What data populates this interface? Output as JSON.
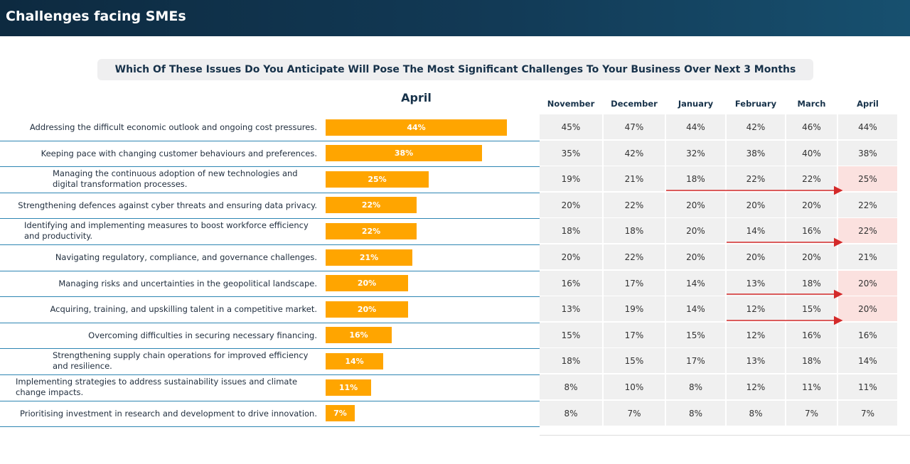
{
  "header": {
    "title": "Challenges facing SMEs"
  },
  "question": "Which Of These Issues Do You Anticipate Will Pose The Most Significant Challenges To Your Business Over Next 3 Months",
  "chart_data": [
    {
      "type": "bar",
      "orientation": "horizontal",
      "title": "April",
      "categories": [
        "Addressing the difficult economic outlook and ongoing cost pressures.",
        "Keeping pace with changing customer behaviours and preferences.",
        "Managing the continuous adoption of new technologies and digital transformation processes.",
        "Strengthening defences against cyber threats and ensuring data privacy.",
        "Identifying and implementing measures to boost workforce efficiency and productivity.",
        "Navigating regulatory, compliance, and governance challenges.",
        "Managing risks and uncertainties in the geopolitical landscape.",
        "Acquiring, training, and upskilling talent in a competitive market.",
        "Overcoming difficulties in securing necessary financing.",
        "Strengthening supply chain operations for improved efficiency and resilience.",
        "Implementing strategies to address sustainability issues and climate change impacts.",
        "Prioritising investment in research and development to drive innovation."
      ],
      "values": [
        44,
        38,
        25,
        22,
        22,
        21,
        20,
        20,
        16,
        14,
        11,
        7
      ],
      "value_labels": [
        "44%",
        "38%",
        "25%",
        "22%",
        "22%",
        "21%",
        "20%",
        "20%",
        "16%",
        "14%",
        "11%",
        "7%"
      ],
      "bar_color": "#ffa500"
    },
    {
      "type": "table",
      "columns": [
        "November",
        "December",
        "January",
        "February",
        "March",
        "April"
      ],
      "rows": [
        [
          "45%",
          "47%",
          "44%",
          "42%",
          "46%",
          "44%"
        ],
        [
          "35%",
          "42%",
          "32%",
          "38%",
          "40%",
          "38%"
        ],
        [
          "19%",
          "21%",
          "18%",
          "22%",
          "22%",
          "25%"
        ],
        [
          "20%",
          "22%",
          "20%",
          "20%",
          "20%",
          "22%"
        ],
        [
          "18%",
          "18%",
          "20%",
          "14%",
          "16%",
          "22%"
        ],
        [
          "20%",
          "22%",
          "20%",
          "20%",
          "20%",
          "21%"
        ],
        [
          "16%",
          "17%",
          "14%",
          "13%",
          "18%",
          "20%"
        ],
        [
          "13%",
          "19%",
          "14%",
          "12%",
          "15%",
          "20%"
        ],
        [
          "15%",
          "17%",
          "15%",
          "12%",
          "16%",
          "16%"
        ],
        [
          "18%",
          "15%",
          "17%",
          "13%",
          "18%",
          "14%"
        ],
        [
          "8%",
          "10%",
          "8%",
          "12%",
          "11%",
          "11%"
        ],
        [
          "8%",
          "7%",
          "8%",
          "8%",
          "7%",
          "7%"
        ]
      ],
      "highlighted_rows": [
        2,
        4,
        6,
        7
      ],
      "trend_arrows": [
        {
          "row": 2,
          "from": "January",
          "to": "April"
        },
        {
          "row": 4,
          "from": "February",
          "to": "April"
        },
        {
          "row": 6,
          "from": "February",
          "to": "April"
        },
        {
          "row": 7,
          "from": "February",
          "to": "April"
        }
      ],
      "highlight_color": "#fbe1df",
      "arrow_color": "#d42a2a",
      "cell_color": "#f0f0f0"
    }
  ]
}
